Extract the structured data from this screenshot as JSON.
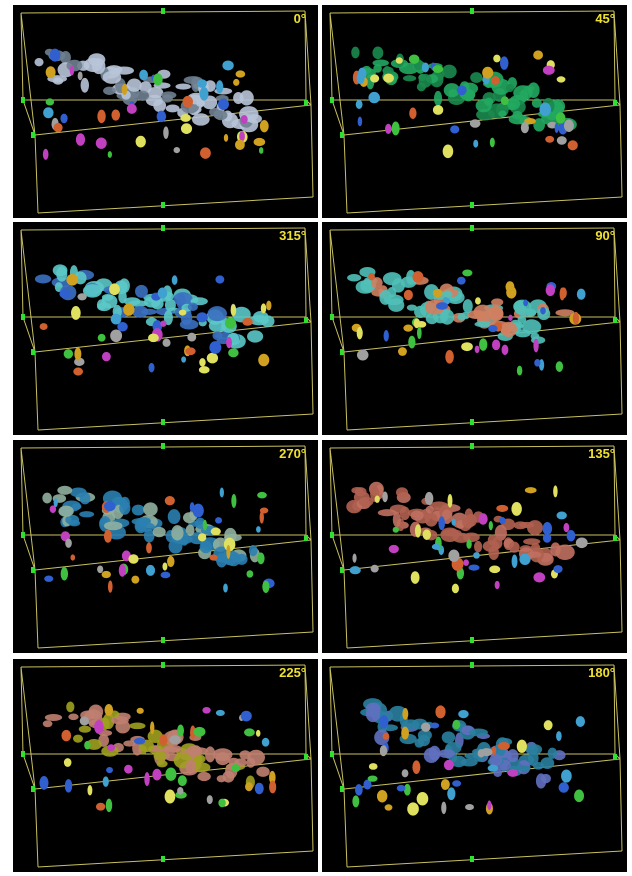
{
  "panels": [
    {
      "label": "0°"
    },
    {
      "label": "45°"
    },
    {
      "label": "315°"
    },
    {
      "label": "90°"
    },
    {
      "label": "270°"
    },
    {
      "label": "135°"
    },
    {
      "label": "225°"
    },
    {
      "label": "180°"
    }
  ]
}
